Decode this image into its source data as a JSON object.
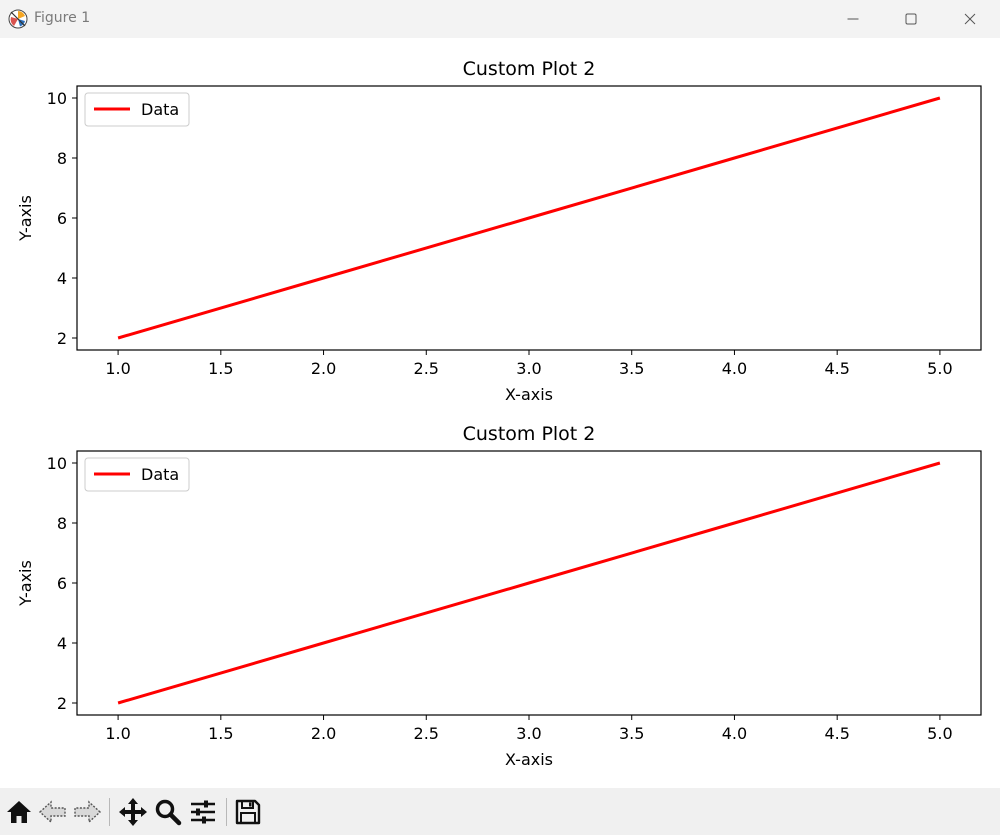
{
  "window": {
    "title": "Figure 1"
  },
  "toolbar": {
    "tools": [
      {
        "name": "home-button",
        "icon": "home-icon"
      },
      {
        "name": "back-button",
        "icon": "arrow-left-icon"
      },
      {
        "name": "forward-button",
        "icon": "arrow-right-icon"
      },
      {
        "name": "pan-button",
        "icon": "move-icon"
      },
      {
        "name": "zoom-button",
        "icon": "magnifier-icon"
      },
      {
        "name": "configure-subplots-button",
        "icon": "sliders-icon"
      },
      {
        "name": "save-button",
        "icon": "floppy-disk-icon"
      }
    ]
  },
  "chart_data": [
    {
      "type": "line",
      "title": "Custom Plot 2",
      "xlabel": "X-axis",
      "ylabel": "Y-axis",
      "xlim": [
        0.8,
        5.2
      ],
      "ylim": [
        1.6,
        10.4
      ],
      "xticks": [
        "1.0",
        "1.5",
        "2.0",
        "2.5",
        "3.0",
        "3.5",
        "4.0",
        "4.5",
        "5.0"
      ],
      "yticks": [
        "2",
        "4",
        "6",
        "8",
        "10"
      ],
      "grid": false,
      "legend": "upper-left",
      "series": [
        {
          "name": "Data",
          "color": "#ff0000",
          "x": [
            1,
            2,
            3,
            4,
            5
          ],
          "y": [
            2,
            4,
            6,
            8,
            10
          ]
        }
      ]
    },
    {
      "type": "line",
      "title": "Custom Plot 2",
      "xlabel": "X-axis",
      "ylabel": "Y-axis",
      "xlim": [
        0.8,
        5.2
      ],
      "ylim": [
        1.6,
        10.4
      ],
      "xticks": [
        "1.0",
        "1.5",
        "2.0",
        "2.5",
        "3.0",
        "3.5",
        "4.0",
        "4.5",
        "5.0"
      ],
      "yticks": [
        "2",
        "4",
        "6",
        "8",
        "10"
      ],
      "grid": false,
      "legend": "upper-left",
      "series": [
        {
          "name": "Data",
          "color": "#ff0000",
          "x": [
            1,
            2,
            3,
            4,
            5
          ],
          "y": [
            2,
            4,
            6,
            8,
            10
          ]
        }
      ]
    }
  ]
}
